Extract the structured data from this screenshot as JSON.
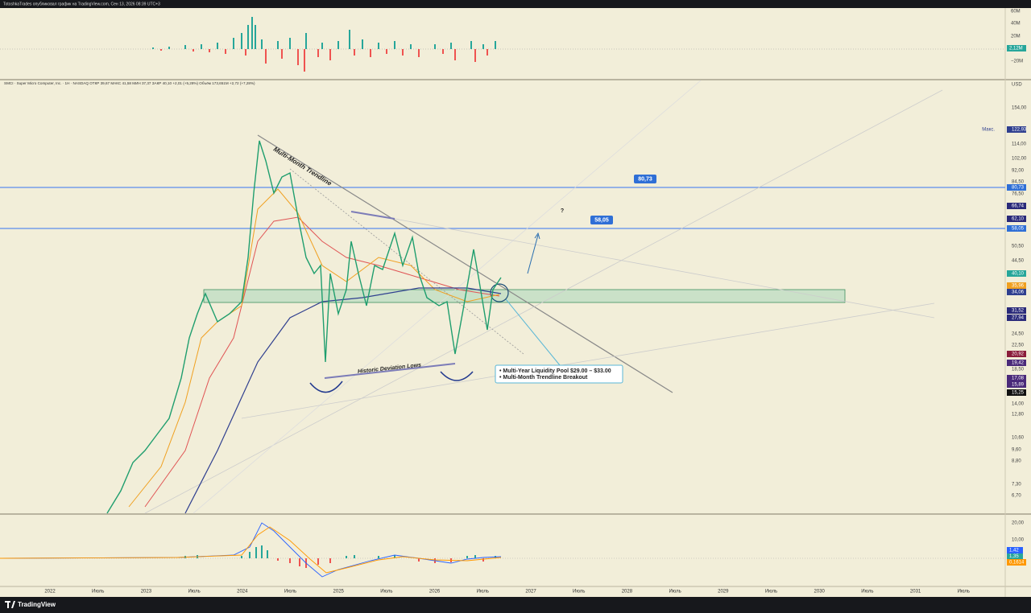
{
  "header": {
    "caption": "TotoshkaTrades опубликовал график на TradingView.com, Сен 13, 2026 08:39 UTC+3"
  },
  "legend": {
    "text": "SMCI · Super Micro Computer, Inc. · 1Н · NASDAQ  ОТКР 39,67  МАКС 41,58  МИН 37,37  ЗАКР 40,10  +2,01 (+5,28%)  Объём 173,651M  +2,72 (+7,28%)"
  },
  "annotations": {
    "trendline": "Multi-Month Trendline",
    "lows": "Historic Deviation Lows",
    "level_high": "80,73",
    "level_low": "58,05",
    "question": "?",
    "callout": [
      "• Multi-Year Liquidity Pool $29.00 – $33.00",
      "• Multi-Month Trendline Breakout"
    ]
  },
  "volume_axis": [
    "60M",
    "40M",
    "20M",
    "2,12M",
    "−20M"
  ],
  "price_axis": {
    "currency": "USD",
    "max_label": "Макс.",
    "labels": [
      {
        "text": "154,00",
        "color": ""
      },
      {
        "text": "122,93",
        "color": "#2f3f8f"
      },
      {
        "text": "114,00",
        "color": ""
      },
      {
        "text": "102,00",
        "color": ""
      },
      {
        "text": "92,00",
        "color": ""
      },
      {
        "text": "84,50",
        "color": ""
      },
      {
        "text": "80,73",
        "color": "#2f6fd6"
      },
      {
        "text": "76,50",
        "color": ""
      },
      {
        "text": "66,74",
        "color": "#2a2a7a"
      },
      {
        "text": "62,10",
        "color": "#2a2a7a"
      },
      {
        "text": "58,05",
        "color": "#2f6fd6"
      },
      {
        "text": "50,50",
        "color": ""
      },
      {
        "text": "44,50",
        "color": ""
      },
      {
        "text": "40,10",
        "color": "#26a69a"
      },
      {
        "text": "35,96",
        "color": "#f0a020"
      },
      {
        "text": "34,06",
        "color": "#2f3f8f"
      },
      {
        "text": "31,52",
        "color": "#2a2a7a"
      },
      {
        "text": "27,94",
        "color": "#2a2a7a"
      },
      {
        "text": "24,50",
        "color": ""
      },
      {
        "text": "22,50",
        "color": ""
      },
      {
        "text": "20,92",
        "color": "#8a1c3a"
      },
      {
        "text": "19,42",
        "color": "#4a2a7a"
      },
      {
        "text": "18,50",
        "color": ""
      },
      {
        "text": "17,08",
        "color": "#4a2a7a"
      },
      {
        "text": "15,89",
        "color": "#4a2a7a"
      },
      {
        "text": "15,25",
        "color": "#111111"
      },
      {
        "text": "14,00",
        "color": ""
      },
      {
        "text": "12,80",
        "color": ""
      },
      {
        "text": "10,60",
        "color": ""
      },
      {
        "text": "9,60",
        "color": ""
      },
      {
        "text": "8,80",
        "color": ""
      },
      {
        "text": "7,30",
        "color": ""
      },
      {
        "text": "6,70",
        "color": ""
      }
    ]
  },
  "macd_axis": [
    "20,00",
    "10,00",
    "1,42",
    "1,35",
    "0,1614"
  ],
  "time_axis": [
    "2022",
    "Июль",
    "2023",
    "Июль",
    "2024",
    "Июль",
    "2025",
    "Июль",
    "2026",
    "Июль",
    "2027",
    "Июль",
    "2028",
    "Июль",
    "2029",
    "Июль",
    "2030",
    "Июль",
    "2031",
    "Июль"
  ],
  "footer": {
    "brand": "TradingView"
  }
}
